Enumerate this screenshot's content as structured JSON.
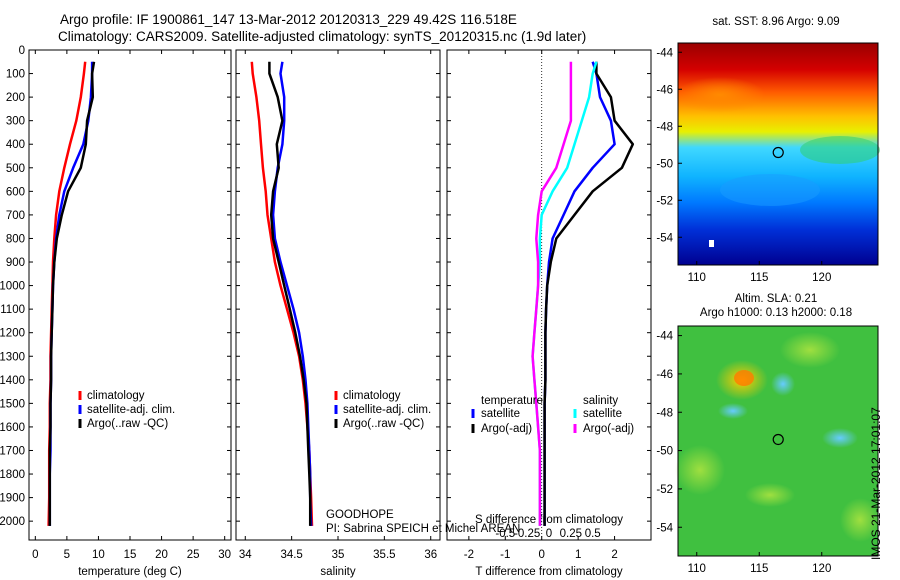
{
  "header": {
    "line1": "Argo profile: IF 1900861_147 13-Mar-2012 20120313_229 49.42S 116.518E",
    "line2": "Climatology: CARS2009. Satellite-adjusted climatology: synTS_20120315.nc (1.9d later)"
  },
  "depth_ticks": [
    "0",
    "100",
    "200",
    "300",
    "400",
    "500",
    "600",
    "700",
    "800",
    "900",
    "1000",
    "1100",
    "1200",
    "1300",
    "1400",
    "1500",
    "1600",
    "1700",
    "1800",
    "1900",
    "2000"
  ],
  "chart_data": [
    {
      "type": "line",
      "xlabel": "temperature (deg C)",
      "ylabel": "",
      "xlim": [
        -1,
        31
      ],
      "ylim": [
        2080,
        0
      ],
      "xticks": [
        "0",
        "5",
        "10",
        "15",
        "20",
        "25",
        "30"
      ],
      "legend": {
        "placement": "bottom-center",
        "entries": [
          {
            "label": "climatology",
            "color": "#ff0000"
          },
          {
            "label": "satellite-adj. clim.",
            "color": "#0000ff"
          },
          {
            "label": "Argo(..raw -QC)",
            "color": "#000000"
          }
        ]
      },
      "series": [
        {
          "name": "climatology",
          "color": "#ff0000",
          "x": [
            7.9,
            7.7,
            7.2,
            6.5,
            5.5,
            4.6,
            3.8,
            3.3,
            3.0,
            2.8,
            2.7,
            2.6,
            2.5,
            2.4,
            2.4,
            2.3,
            2.3,
            2.2,
            2.2,
            2.2,
            2.1
          ],
          "y": [
            50,
            100,
            200,
            300,
            400,
            500,
            600,
            700,
            800,
            900,
            1000,
            1100,
            1200,
            1300,
            1400,
            1500,
            1600,
            1700,
            1800,
            1900,
            2020
          ]
        },
        {
          "name": "satellite-adj. clim.",
          "color": "#0000ff",
          "x": [
            9.0,
            9.0,
            8.8,
            8.4,
            7.6,
            6.0,
            4.6,
            3.8,
            3.3,
            3.0,
            2.8,
            2.7,
            2.6,
            2.5,
            2.5,
            2.4,
            2.4,
            2.4,
            2.3,
            2.3,
            2.3
          ],
          "y": [
            50,
            100,
            200,
            300,
            400,
            500,
            600,
            700,
            800,
            900,
            1000,
            1100,
            1200,
            1300,
            1400,
            1500,
            1600,
            1700,
            1800,
            1900,
            2020
          ]
        },
        {
          "name": "Argo(..raw -QC)",
          "color": "#000000",
          "x": [
            9.3,
            9.0,
            9.1,
            8.2,
            8.0,
            7.2,
            5.2,
            4.2,
            3.4,
            3.0,
            2.8,
            2.7,
            2.6,
            2.5,
            2.5,
            2.4,
            2.4,
            2.3,
            2.3,
            2.3,
            2.3
          ],
          "y": [
            50,
            100,
            200,
            300,
            400,
            500,
            600,
            700,
            800,
            900,
            1000,
            1100,
            1200,
            1300,
            1400,
            1500,
            1600,
            1700,
            1800,
            1900,
            2020
          ]
        }
      ]
    },
    {
      "type": "line",
      "xlabel": "salinity",
      "ylabel": "",
      "xlim": [
        33.9,
        36.1
      ],
      "ylim": [
        2080,
        0
      ],
      "xticks": [
        "34",
        "34.5",
        "35",
        "35.5",
        "36"
      ],
      "annotations": [
        "GOODHOPE",
        "PI: Sabrina SPEICH et Michel AREAN"
      ],
      "legend": {
        "placement": "bottom-center",
        "entries": [
          {
            "label": "climatology",
            "color": "#ff0000"
          },
          {
            "label": "satellite-adj. clim.",
            "color": "#0000ff"
          },
          {
            "label": "Argo(..raw -QC)",
            "color": "#000000"
          }
        ]
      },
      "series": [
        {
          "name": "climatology",
          "color": "#ff0000",
          "x": [
            34.07,
            34.08,
            34.12,
            34.15,
            34.17,
            34.19,
            34.22,
            34.24,
            34.28,
            34.32,
            34.38,
            34.45,
            34.52,
            34.58,
            34.62,
            34.65,
            34.67,
            34.69,
            34.7,
            34.71,
            34.72
          ],
          "y": [
            50,
            100,
            200,
            300,
            400,
            500,
            600,
            700,
            800,
            900,
            1000,
            1100,
            1200,
            1300,
            1400,
            1500,
            1600,
            1700,
            1800,
            1900,
            2020
          ]
        },
        {
          "name": "satellite-adj. clim.",
          "color": "#0000ff",
          "x": [
            34.4,
            34.38,
            34.42,
            34.42,
            34.4,
            34.35,
            34.32,
            34.3,
            34.32,
            34.38,
            34.45,
            34.52,
            34.58,
            34.62,
            34.65,
            34.67,
            34.68,
            34.69,
            34.7,
            34.7,
            34.71
          ],
          "y": [
            50,
            100,
            200,
            300,
            400,
            500,
            600,
            700,
            800,
            900,
            1000,
            1100,
            1200,
            1300,
            1400,
            1500,
            1600,
            1700,
            1800,
            1900,
            2020
          ]
        },
        {
          "name": "Argo(..raw -QC)",
          "color": "#000000",
          "x": [
            34.26,
            34.26,
            34.35,
            34.4,
            34.34,
            34.36,
            34.3,
            34.28,
            34.3,
            34.36,
            34.42,
            34.48,
            34.54,
            34.59,
            34.63,
            34.66,
            34.67,
            34.68,
            34.69,
            34.7,
            34.7
          ],
          "y": [
            50,
            100,
            200,
            300,
            400,
            500,
            600,
            700,
            800,
            900,
            1000,
            1100,
            1200,
            1300,
            1400,
            1500,
            1600,
            1700,
            1800,
            1900,
            2020
          ]
        }
      ]
    },
    {
      "type": "line",
      "xlabel": "T difference from climatology",
      "xlabel2": "S difference from climatology",
      "ylabel": "",
      "xlim": [
        -2.6,
        3.0
      ],
      "ylim": [
        2080,
        0
      ],
      "xticks": [
        "-2",
        "-1",
        "0",
        "1",
        "2"
      ],
      "xticks2": [
        "-0.5",
        "-0.25",
        "0",
        "0.25",
        "0.5"
      ],
      "legend": {
        "placement": "bottom-center",
        "temperature_title": "temperature",
        "salinity_title": "salinity",
        "entries": [
          {
            "label": "satellite",
            "color": "#0000ff"
          },
          {
            "label": "Argo(-adj)",
            "color": "#000000"
          },
          {
            "label": "satellite",
            "color": "#00ffff"
          },
          {
            "label": "Argo(-adj)",
            "color": "#ff00ff"
          }
        ]
      },
      "series": [
        {
          "name": "temperature satellite",
          "color": "#0000ff",
          "x": [
            1.4,
            1.5,
            1.6,
            1.9,
            2.0,
            1.4,
            0.9,
            0.6,
            0.3,
            0.2,
            0.15,
            0.12,
            0.1,
            0.1,
            0.1,
            0.08,
            0.08,
            0.08,
            0.08,
            0.08,
            0.08
          ],
          "y": [
            50,
            100,
            200,
            300,
            400,
            500,
            600,
            700,
            800,
            900,
            1000,
            1100,
            1200,
            1300,
            1400,
            1500,
            1600,
            1700,
            1800,
            1900,
            2020
          ]
        },
        {
          "name": "temperature Argo(-adj)",
          "color": "#000000",
          "x": [
            1.5,
            1.5,
            1.9,
            2.0,
            2.5,
            2.2,
            1.4,
            0.9,
            0.4,
            0.25,
            0.15,
            0.12,
            0.1,
            0.1,
            0.1,
            0.08,
            0.08,
            0.08,
            0.08,
            0.08,
            0.08
          ],
          "y": [
            50,
            100,
            200,
            300,
            400,
            500,
            600,
            700,
            800,
            900,
            1000,
            1100,
            1200,
            1300,
            1400,
            1500,
            1600,
            1700,
            1800,
            1900,
            2020
          ]
        },
        {
          "name": "salinity satellite",
          "color": "#00ffff",
          "x": [
            1.5,
            1.4,
            1.3,
            1.1,
            0.9,
            0.7,
            0.3,
            0.0,
            -0.05,
            -0.05,
            -0.1,
            -0.15,
            -0.2,
            -0.25,
            -0.2,
            -0.15,
            -0.1,
            -0.05,
            -0.05,
            -0.05,
            -0.05
          ],
          "y": [
            50,
            100,
            200,
            300,
            400,
            500,
            600,
            700,
            800,
            900,
            1000,
            1100,
            1200,
            1300,
            1400,
            1500,
            1600,
            1700,
            1800,
            1900,
            2020
          ]
        },
        {
          "name": "salinity Argo(-adj)",
          "color": "#ff00ff",
          "x": [
            0.8,
            0.8,
            0.8,
            0.8,
            0.6,
            0.4,
            0.0,
            -0.1,
            -0.15,
            -0.1,
            -0.1,
            -0.15,
            -0.2,
            -0.25,
            -0.2,
            -0.15,
            -0.1,
            -0.05,
            -0.05,
            -0.05,
            -0.05
          ],
          "y": [
            50,
            100,
            200,
            300,
            400,
            500,
            600,
            700,
            800,
            900,
            1000,
            1100,
            1200,
            1300,
            1400,
            1500,
            1600,
            1700,
            1800,
            1900,
            2020
          ]
        }
      ]
    },
    {
      "type": "heatmap",
      "title": "sat. SST: 8.96 Argo: 9.09",
      "xlim": [
        108.5,
        124.5
      ],
      "ylim": [
        -55.5,
        -43.5
      ],
      "xticks": [
        "110",
        "115",
        "120"
      ],
      "yticks": [
        "-44",
        "-46",
        "-48",
        "-50",
        "-52",
        "-54"
      ],
      "marker": {
        "lon": 116.518,
        "lat": -49.42
      },
      "colormap": "jet"
    },
    {
      "type": "heatmap",
      "title": "Altim. SLA: 0.21",
      "subtitle": "Argo h1000: 0.13 h2000: 0.18",
      "xlim": [
        108.5,
        124.5
      ],
      "ylim": [
        -55.5,
        -43.5
      ],
      "xticks": [
        "110",
        "115",
        "120"
      ],
      "yticks": [
        "-44",
        "-46",
        "-48",
        "-50",
        "-52",
        "-54"
      ],
      "marker": {
        "lon": 116.518,
        "lat": -49.42
      },
      "colormap": "jet"
    }
  ],
  "footer": {
    "stamp": "IMOS 21-Mar-2012 17:01:07"
  }
}
